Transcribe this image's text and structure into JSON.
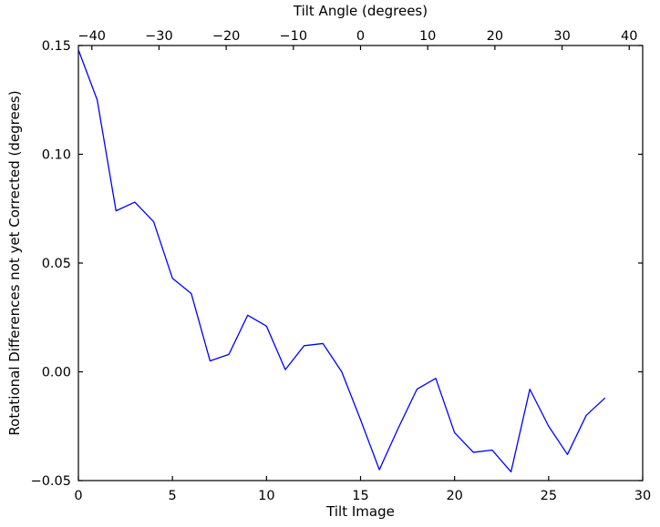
{
  "chart_data": {
    "type": "line",
    "title_top_axis": "Tilt Angle (degrees)",
    "xlabel_bottom": "Tilt Image",
    "ylabel": "Rotational Differences not yet Corrected (degrees)",
    "line_color": "#0000ff",
    "frame_color": "#000000",
    "background": "#ffffff",
    "grid": false,
    "legend": null,
    "xlim": [
      0,
      30
    ],
    "ylim": [
      -0.05,
      0.15
    ],
    "top_xlim": [
      -42,
      42
    ],
    "x": [
      0,
      1,
      2,
      3,
      4,
      5,
      6,
      7,
      8,
      9,
      10,
      11,
      12,
      13,
      14,
      15,
      16,
      17,
      18,
      19,
      20,
      21,
      22,
      23,
      24,
      25,
      26,
      27,
      28
    ],
    "y": [
      0.148,
      0.125,
      0.074,
      0.078,
      0.069,
      0.043,
      0.036,
      0.005,
      0.008,
      0.026,
      0.021,
      0.001,
      0.012,
      0.013,
      0.0,
      -0.022,
      -0.045,
      -0.026,
      -0.008,
      -0.003,
      -0.028,
      -0.037,
      -0.036,
      -0.046,
      -0.008,
      -0.025,
      -0.038,
      -0.02,
      -0.012
    ],
    "xticks_bottom": {
      "values": [
        0,
        5,
        10,
        15,
        20,
        25,
        30
      ],
      "labels": [
        "0",
        "5",
        "10",
        "15",
        "20",
        "25",
        "30"
      ]
    },
    "xticks_top": {
      "values": [
        -40,
        -30,
        -20,
        -10,
        0,
        10,
        20,
        30,
        40
      ],
      "labels": [
        "−40",
        "−30",
        "−20",
        "−10",
        "0",
        "10",
        "20",
        "30",
        "40"
      ]
    },
    "yticks": {
      "values": [
        0.15,
        0.1,
        0.05,
        0.0,
        -0.05
      ],
      "labels": [
        "0.15",
        "0.10",
        "0.05",
        "0.00",
        "−0.05"
      ]
    }
  }
}
